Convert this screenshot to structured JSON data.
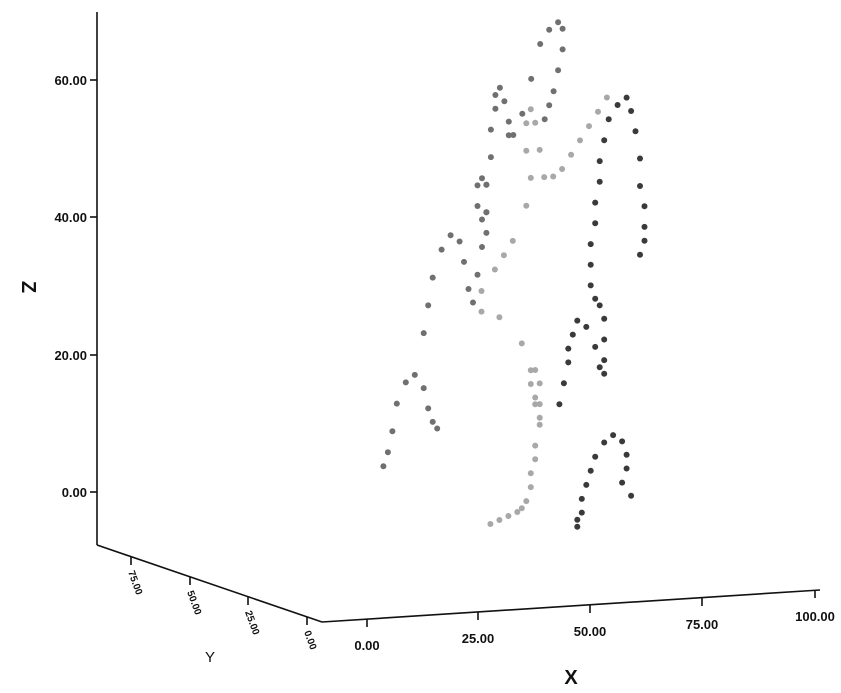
{
  "chart_data": {
    "type": "scatter",
    "projection": "3d",
    "title": "",
    "xlabel": "X",
    "ylabel": "Y",
    "zlabel": "Z",
    "x_ticks": [
      "0.00",
      "25.00",
      "50.00",
      "75.00",
      "100.00"
    ],
    "y_ticks": [
      "0.00",
      "25.00",
      "50.00",
      "75.00"
    ],
    "z_ticks": [
      "0.00",
      "20.00",
      "40.00",
      "60.00"
    ],
    "xlim": [
      0,
      100
    ],
    "ylim": [
      0,
      75
    ],
    "zlim": [
      -5,
      70
    ],
    "legend": "none",
    "grid": false,
    "series": [
      {
        "color": "#a8a8a8",
        "z": [
          -8,
          -7.5,
          -7,
          -6.5,
          -6,
          -5,
          -3,
          -1,
          1,
          3,
          6,
          9,
          12,
          14,
          12,
          9,
          7,
          10,
          14,
          18,
          22,
          23,
          26,
          29,
          31,
          33,
          38,
          42,
          46,
          50,
          52,
          50,
          46,
          42,
          42,
          43,
          45,
          47,
          49,
          51,
          53
        ],
        "x": [
          38,
          40,
          42,
          44,
          45,
          46,
          47,
          47,
          48,
          48,
          49,
          49,
          49,
          48,
          47,
          48,
          49,
          48,
          47,
          45,
          40,
          36,
          36,
          39,
          41,
          43,
          46,
          47,
          46,
          46,
          47,
          48,
          49,
          50,
          52,
          54,
          56,
          58,
          60,
          62,
          64
        ],
        "y": [
          20,
          20,
          20,
          20,
          20,
          20,
          20,
          20,
          20,
          20,
          20,
          20,
          20,
          20,
          20,
          20,
          20,
          20,
          20,
          20,
          20,
          20,
          20,
          20,
          20,
          20,
          20,
          20,
          20,
          20,
          20,
          20,
          20,
          20,
          20,
          20,
          20,
          20,
          20,
          20,
          20
        ]
      },
      {
        "color": "#707070",
        "z": [
          -5,
          -3,
          0,
          4,
          7,
          8,
          6,
          3,
          1,
          0,
          14,
          18,
          22,
          26,
          28,
          27,
          24,
          20,
          18,
          22,
          26,
          31,
          35,
          36,
          35,
          32,
          30,
          28,
          31,
          35,
          39,
          43,
          46,
          48,
          49,
          47,
          44,
          42,
          42,
          45,
          50,
          55,
          57,
          58,
          57,
          54,
          51,
          48,
          46,
          44
        ],
        "x": [
          35,
          36,
          37,
          38,
          40,
          42,
          44,
          45,
          46,
          47,
          44,
          45,
          46,
          48,
          50,
          52,
          53,
          54,
          55,
          56,
          57,
          58,
          58,
          57,
          56,
          56,
          57,
          58,
          58,
          58,
          59,
          59,
          60,
          60,
          61,
          62,
          63,
          63,
          64,
          66,
          68,
          70,
          72,
          74,
          75,
          75,
          74,
          73,
          72,
          71
        ],
        "y": [
          60,
          60,
          60,
          60,
          60,
          60,
          60,
          60,
          60,
          60,
          60,
          60,
          60,
          60,
          60,
          60,
          60,
          60,
          60,
          60,
          60,
          60,
          60,
          60,
          60,
          60,
          60,
          60,
          60,
          60,
          60,
          60,
          60,
          60,
          60,
          60,
          60,
          60,
          60,
          60,
          60,
          60,
          60,
          60,
          60,
          60,
          60,
          60,
          60,
          60
        ]
      },
      {
        "color": "#3a3a3a",
        "z": [
          -10,
          -9,
          -8,
          -6,
          -4,
          -2,
          0,
          2,
          3,
          2,
          0,
          -2,
          -4,
          -6,
          8,
          11,
          14,
          16,
          18,
          20,
          19,
          16,
          13,
          12,
          14,
          17,
          20,
          22,
          23,
          25,
          28,
          31,
          34,
          37,
          40,
          43,
          46,
          49,
          51,
          52,
          50,
          47,
          43,
          39,
          36,
          33,
          31,
          29
        ],
        "x": [
          60,
          60,
          61,
          61,
          62,
          63,
          64,
          66,
          68,
          70,
          71,
          71,
          70,
          72,
          56,
          57,
          58,
          58,
          59,
          60,
          62,
          64,
          65,
          66,
          66,
          66,
          66,
          65,
          64,
          63,
          63,
          63,
          64,
          64,
          65,
          65,
          66,
          67,
          69,
          71,
          72,
          73,
          74,
          74,
          75,
          75,
          75,
          74
        ],
        "y": [
          25,
          25,
          25,
          25,
          25,
          25,
          25,
          25,
          25,
          25,
          25,
          25,
          25,
          25,
          25,
          25,
          25,
          25,
          25,
          25,
          25,
          25,
          25,
          25,
          25,
          25,
          25,
          25,
          25,
          25,
          25,
          25,
          25,
          25,
          25,
          25,
          25,
          25,
          25,
          25,
          25,
          25,
          25,
          25,
          25,
          25,
          25,
          25
        ]
      }
    ]
  }
}
